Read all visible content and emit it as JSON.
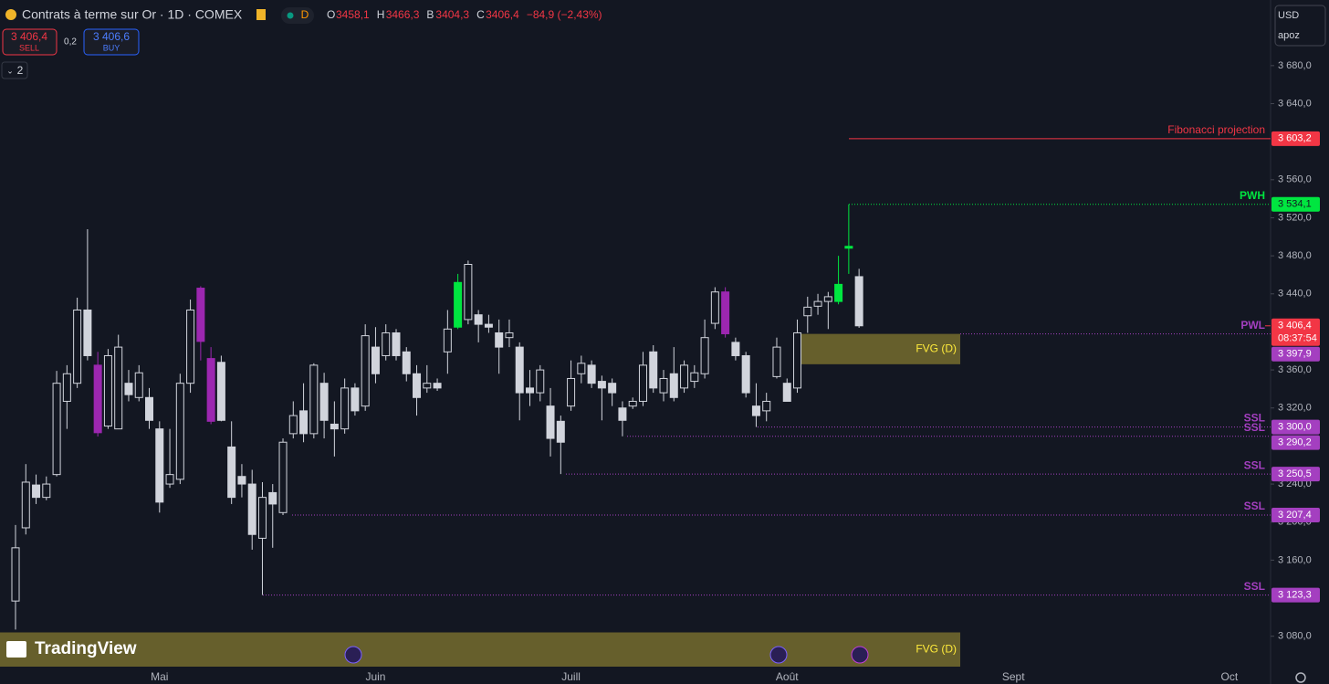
{
  "header": {
    "title": "Contrats à terme sur Or · 1D · COMEX",
    "badge": "D",
    "ohlc": [
      {
        "key": "O",
        "value": "3458,1"
      },
      {
        "key": "H",
        "value": "3466,3"
      },
      {
        "key": "B",
        "value": "3404,3"
      },
      {
        "key": "C",
        "value": "3406,4"
      }
    ],
    "change": "−84,9 (−2,43%)",
    "sell_price": "3 406,4",
    "sell": "SELL",
    "spread": "0,2",
    "buy_price": "3 406,6",
    "buy": "BUY",
    "indicators": "2",
    "currency": "USD",
    "account": "apoz",
    "brand": "TradingView"
  },
  "chart_data": {
    "type": "candlestick",
    "categories": [
      null,
      null,
      null,
      null,
      null,
      null,
      null,
      null,
      null,
      null,
      null,
      null,
      null,
      null,
      "Mai",
      null,
      null,
      null,
      null,
      null,
      null,
      null,
      null,
      null,
      null,
      null,
      null,
      null,
      null,
      null,
      null,
      null,
      null,
      null,
      null,
      "Juin",
      null,
      null,
      null,
      null,
      null,
      null,
      null,
      null,
      null,
      null,
      null,
      null,
      null,
      null,
      null,
      null,
      null,
      null,
      "Juill",
      null,
      null,
      null,
      null,
      null,
      null,
      null,
      null,
      null,
      null,
      null,
      null,
      null,
      null,
      null,
      null,
      null,
      null,
      null,
      null,
      "Août",
      null,
      null,
      null,
      null,
      null,
      null,
      null,
      null,
      null,
      null,
      null,
      null,
      null,
      null,
      null,
      null,
      null,
      null,
      null,
      null,
      null,
      "Sept",
      null,
      null,
      null,
      null,
      null,
      null,
      null,
      null,
      null,
      null,
      null,
      null,
      null,
      null,
      null,
      null,
      null,
      null,
      null,
      null,
      "Oct"
    ],
    "open": [
      3117,
      3194,
      3239,
      3226,
      3250,
      3327,
      3346,
      3423,
      3365,
      3301,
      3298,
      3346,
      3331,
      3331,
      3298,
      3240,
      3245,
      3346,
      3390,
      3372,
      3368,
      3279,
      3248,
      3240,
      3183,
      3231,
      3210,
      3293,
      3317,
      3293,
      3346,
      3303,
      3298,
      3341,
      3322,
      3384,
      3375,
      3399,
      3379,
      3356,
      3341,
      3346,
      3379,
      3405,
      3413,
      3418,
      3408,
      3399,
      3394,
      3384,
      3341,
      3336,
      3322,
      3306,
      3322,
      3356,
      3365,
      3348,
      3346,
      3320,
      3322,
      3327,
      3379,
      3336,
      3356,
      3341,
      3348,
      3356,
      3409,
      3442,
      3389,
      3375,
      3322,
      3317,
      3353,
      3346,
      3341,
      3417,
      3427,
      3432,
      3432,
      3488,
      3458.1,
      null,
      null,
      null,
      null,
      null,
      null,
      null,
      null,
      null,
      null,
      null,
      null,
      null,
      null,
      null,
      null,
      null,
      null,
      null,
      null,
      null,
      null,
      null,
      null,
      null,
      null,
      null,
      null,
      null,
      null,
      null,
      null,
      null,
      null,
      null,
      null
    ],
    "high": [
      3197,
      3261,
      3250,
      3248,
      3359,
      3365,
      3436,
      3508,
      3379,
      3382,
      3397,
      3360,
      3365,
      3341,
      3306,
      3298,
      3356,
      3434,
      3448,
      3384,
      3375,
      3306,
      3261,
      3255,
      3242,
      3240,
      3288,
      3327,
      3346,
      3367,
      3357,
      3327,
      3351,
      3346,
      3408,
      3405,
      3408,
      3403,
      3384,
      3365,
      3365,
      3351,
      3423,
      3461,
      3475,
      3423,
      3418,
      3413,
      3413,
      3389,
      3360,
      3365,
      3341,
      3312,
      3370,
      3375,
      3370,
      3354,
      3351,
      3327,
      3331,
      3379,
      3386,
      3360,
      3384,
      3370,
      3365,
      3413,
      3447,
      3447,
      3394,
      3379,
      3346,
      3336,
      3394,
      3351,
      3413,
      3437,
      3440,
      3442,
      3480,
      3534.1,
      3466.3,
      null,
      null,
      null,
      null,
      null,
      null,
      null,
      null,
      null,
      null,
      null,
      null,
      null,
      null,
      null,
      null,
      null,
      null,
      null,
      null,
      null,
      null,
      null,
      null,
      null,
      null,
      null,
      null,
      null,
      null,
      null,
      null,
      null,
      null,
      null,
      null
    ],
    "low": [
      3087,
      3187,
      3219,
      3223,
      3248,
      3298,
      3341,
      3370,
      3290,
      3298,
      3298,
      3327,
      3327,
      3298,
      3210,
      3236,
      3240,
      3336,
      3370,
      3303,
      3306,
      3219,
      3226,
      3171,
      3123.3,
      3173,
      3207.4,
      3288,
      3284,
      3288,
      3288,
      3269,
      3293,
      3312,
      3317,
      3346,
      3370,
      3370,
      3348,
      3312,
      3336,
      3338,
      3356,
      3403,
      3408,
      3389,
      3399,
      3356,
      3384,
      3307,
      3322,
      3327,
      3269,
      3250.5,
      3317,
      3346,
      3341,
      3307,
      3322,
      3290.2,
      3319,
      3322,
      3336,
      3327,
      3327,
      3336,
      3341,
      3351,
      3403,
      3394,
      3370,
      3331,
      3300,
      3306,
      3351,
      3328,
      3336,
      3399,
      3418,
      3403,
      3429,
      3461,
      3404.3,
      null,
      null,
      null,
      null,
      null,
      null,
      null,
      null,
      null,
      null,
      null,
      null,
      null,
      null,
      null,
      null,
      null,
      null,
      null,
      null,
      null,
      null,
      null,
      null,
      null,
      null,
      null,
      null,
      null,
      null,
      null,
      null,
      null,
      null,
      null,
      null
    ],
    "close": [
      3173,
      3242,
      3226,
      3240,
      3346,
      3356,
      3423,
      3375,
      3294,
      3375,
      3384,
      3334,
      3357,
      3307,
      3221,
      3250,
      3346,
      3423,
      3446,
      3306,
      3307,
      3226,
      3240,
      3187,
      3226,
      3219,
      3284,
      3312,
      3293,
      3365,
      3307,
      3298,
      3341,
      3317,
      3396,
      3356,
      3399,
      3375,
      3356,
      3331,
      3346,
      3341,
      3403,
      3452,
      3471,
      3408,
      3405,
      3384,
      3399,
      3336,
      3336,
      3360,
      3288,
      3284,
      3351,
      3367,
      3346,
      3341,
      3336,
      3307,
      3327,
      3365,
      3341,
      3351,
      3331,
      3365,
      3357,
      3394,
      3442,
      3398,
      3375,
      3336,
      3312,
      3327,
      3384,
      3327,
      3399,
      3426,
      3432,
      3437,
      3450,
      3490,
      3406.4,
      null,
      null,
      null,
      null,
      null,
      null,
      null,
      null,
      null,
      null,
      null,
      null,
      null,
      null,
      null,
      null,
      null,
      null,
      null,
      null,
      null,
      null,
      null,
      null,
      null,
      null,
      null,
      null,
      null,
      null,
      null,
      null,
      null,
      null,
      null,
      null
    ],
    "color": "#d1d4dc",
    "highlights": [
      {
        "index": 8,
        "color": "#9c27b0"
      },
      {
        "index": 18,
        "color": "#9c27b0"
      },
      {
        "index": 19,
        "color": "#9c27b0"
      },
      {
        "index": 69,
        "color": "#9c27b0"
      },
      {
        "index": 43,
        "color": "#00e640"
      },
      {
        "index": 80,
        "color": "#00e640"
      },
      {
        "index": 81,
        "color": "#00e640"
      }
    ],
    "ylim": [
      3048,
      3749
    ],
    "yticks": [
      {
        "value": 3080,
        "label": "3 080,0"
      },
      {
        "value": 3160,
        "label": "3 160,0"
      },
      {
        "value": 3200,
        "label": "3 200,0"
      },
      {
        "value": 3240,
        "label": "3 240,0"
      },
      {
        "value": 3320,
        "label": "3 320,0"
      },
      {
        "value": 3360,
        "label": "3 360,0"
      },
      {
        "value": 3440,
        "label": "3 440,0"
      },
      {
        "value": 3480,
        "label": "3 480,0"
      },
      {
        "value": 3520,
        "label": "3 520,0"
      },
      {
        "value": 3560,
        "label": "3 560,0"
      },
      {
        "value": 3640,
        "label": "3 640,0"
      },
      {
        "value": 3680,
        "label": "3 680,0"
      }
    ],
    "levels": [
      {
        "name": "Fibonacci projection",
        "value": 3603.2,
        "label": "3 603,2",
        "color": "#f23645"
      },
      {
        "name": "PWH",
        "value": 3534.1,
        "label": "3 534,1",
        "color": "#00e640"
      },
      {
        "name": "PWL",
        "value": 3397.9,
        "label": "3 397,9",
        "color": "#a43fc0"
      },
      {
        "name": "SSL",
        "value": 3300.0,
        "label": "3 300,0",
        "color": "#a43fc0"
      },
      {
        "name": "SSL",
        "value": 3290.2,
        "label": "3 290,2",
        "color": "#a43fc0"
      },
      {
        "name": "SSL",
        "value": 3250.5,
        "label": "3 250,5",
        "color": "#a43fc0"
      },
      {
        "name": "SSL",
        "value": 3207.4,
        "label": "3 207,4",
        "color": "#a43fc0"
      },
      {
        "name": "SSL",
        "value": 3123.3,
        "label": "3 123,3",
        "color": "#a43fc0"
      }
    ],
    "current_price": {
      "value": 3406.4,
      "label": "3 406,4",
      "countdown": "08:37:54",
      "color": "#f23645"
    },
    "zones": [
      {
        "label": "FVG (D)",
        "top": 3397.9,
        "bottom": 3366,
        "color": "#8a7f30"
      },
      {
        "label": "FVG (D)",
        "top": 3084,
        "bottom": 3048,
        "color": "#8a7f30"
      }
    ]
  }
}
